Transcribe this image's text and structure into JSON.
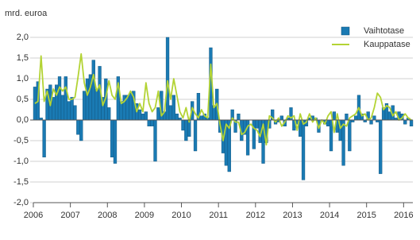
{
  "chart_data": {
    "type": "bar_line",
    "y_label": "mrd. euroa",
    "categories": [
      "2006",
      null,
      null,
      null,
      null,
      null,
      null,
      null,
      null,
      null,
      null,
      null,
      "2007",
      null,
      null,
      null,
      null,
      null,
      null,
      null,
      null,
      null,
      null,
      null,
      "2008",
      null,
      null,
      null,
      null,
      null,
      null,
      null,
      null,
      null,
      null,
      null,
      "2009",
      null,
      null,
      null,
      null,
      null,
      null,
      null,
      null,
      null,
      null,
      null,
      "2010",
      null,
      null,
      null,
      null,
      null,
      null,
      null,
      null,
      null,
      null,
      null,
      "2011",
      null,
      null,
      null,
      null,
      null,
      null,
      null,
      null,
      null,
      null,
      null,
      "2012",
      null,
      null,
      null,
      null,
      null,
      null,
      null,
      null,
      null,
      null,
      null,
      "2013",
      null,
      null,
      null,
      null,
      null,
      null,
      null,
      null,
      null,
      null,
      null,
      "2014",
      null,
      null,
      null,
      null,
      null,
      null,
      null,
      null,
      null,
      null,
      null,
      "2015",
      null,
      null,
      null,
      null,
      null,
      null,
      null,
      null,
      null,
      null,
      null,
      "2016",
      null,
      null
    ],
    "series": [
      {
        "name": "Vaihtotase",
        "type": "bar",
        "color": "#1a7ab3",
        "values": [
          0.8,
          0.93,
          0.05,
          -0.9,
          0.75,
          0.85,
          0.55,
          0.85,
          1.05,
          0.6,
          1.05,
          0.45,
          0.55,
          0.35,
          -0.35,
          -0.5,
          0.7,
          1.0,
          1.1,
          1.45,
          0.75,
          1.3,
          0.55,
          1.0,
          0.3,
          -0.9,
          -1.05,
          1.05,
          0.45,
          0.6,
          0.6,
          0.65,
          0.7,
          0.4,
          0.25,
          0.15,
          0.2,
          -0.15,
          -0.15,
          -1.0,
          0.3,
          0.7,
          0.2,
          2.0,
          0.35,
          0.6,
          0.15,
          0.05,
          -0.25,
          -0.5,
          -0.4,
          0.45,
          -0.75,
          0.65,
          0.1,
          0.15,
          0.05,
          1.75,
          0.35,
          0.75,
          -0.3,
          -0.8,
          -1.1,
          -1.25,
          0.25,
          -0.3,
          0.15,
          -0.5,
          -0.35,
          -0.85,
          0.0,
          -0.7,
          -0.2,
          -0.55,
          -1.05,
          -0.55,
          -0.2,
          0.25,
          -0.1,
          -0.05,
          0.1,
          -0.15,
          0.05,
          0.3,
          -0.25,
          -0.1,
          -0.4,
          -1.45,
          -0.15,
          0.05,
          0.1,
          0.05,
          -0.3,
          0.0,
          -0.1,
          -0.15,
          -0.75,
          0.2,
          -0.3,
          -0.5,
          -1.1,
          0.15,
          -0.75,
          -0.05,
          0.1,
          0.6,
          0.15,
          -0.05,
          0.2,
          -0.1,
          0.1,
          -0.05,
          -1.3,
          0.3,
          0.4,
          0.2,
          0.35,
          0.05,
          0.2,
          0.15,
          -0.1,
          0.05,
          -0.15
        ]
      },
      {
        "name": "Kauppatase",
        "type": "line",
        "color": "#b3d334",
        "values": [
          0.4,
          0.45,
          1.55,
          0.45,
          0.7,
          0.35,
          0.75,
          0.6,
          0.8,
          0.7,
          0.8,
          0.5,
          0.5,
          0.55,
          1.05,
          1.6,
          0.9,
          0.6,
          0.8,
          1.1,
          0.7,
          0.85,
          0.35,
          0.55,
          0.95,
          0.6,
          0.5,
          0.9,
          0.4,
          0.45,
          0.55,
          0.7,
          0.55,
          0.2,
          0.4,
          0.2,
          0.9,
          0.4,
          0.2,
          0.3,
          0.7,
          0.1,
          0.2,
          0.95,
          0.5,
          1.0,
          0.6,
          0.2,
          0.05,
          0.3,
          -0.05,
          0.3,
          0.15,
          0.05,
          0.25,
          0.1,
          0.05,
          1.35,
          0.3,
          0.4,
          -0.1,
          -0.5,
          -0.1,
          -0.2,
          0.05,
          -0.05,
          -0.05,
          -0.35,
          -0.3,
          -0.15,
          -0.1,
          -0.2,
          -0.25,
          -0.4,
          -0.1,
          -0.6,
          0.1,
          0.05,
          -0.05,
          0.05,
          -0.15,
          -0.05,
          0.1,
          0.05,
          0.1,
          -0.25,
          0.15,
          -0.1,
          -0.05,
          0.15,
          -0.05,
          0.05,
          -0.2,
          0.0,
          -0.1,
          0.1,
          0.2,
          -0.3,
          0.15,
          -0.2,
          -0.1,
          -0.15,
          0.05,
          0.1,
          0.15,
          0.3,
          0.1,
          0.15,
          0.0,
          0.05,
          0.3,
          0.65,
          0.55,
          0.25,
          0.35,
          0.3,
          0.1,
          0.2,
          0.0,
          0.05,
          0.15,
          0.05,
          0.0
        ]
      }
    ],
    "ylim": [
      -2.0,
      2.0
    ],
    "yticks": [
      {
        "value": 2.0,
        "label": "2,0"
      },
      {
        "value": 1.5,
        "label": "1,5"
      },
      {
        "value": 1.0,
        "label": "1,0"
      },
      {
        "value": 0.5,
        "label": "0,5"
      },
      {
        "value": 0.0,
        "label": "0,0"
      },
      {
        "value": -0.5,
        "label": "-0,5"
      },
      {
        "value": -1.0,
        "label": "-1,0"
      },
      {
        "value": -1.5,
        "label": "-1,5"
      },
      {
        "value": -2.0,
        "label": "-2,0"
      }
    ],
    "grid": true,
    "legend": "upper right"
  }
}
